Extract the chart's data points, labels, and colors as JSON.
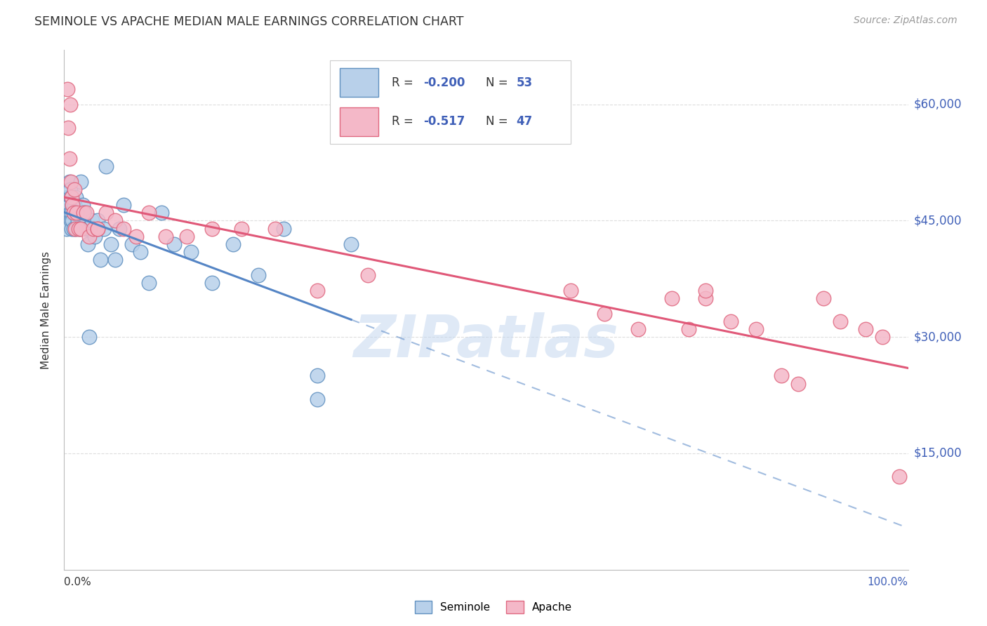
{
  "title": "SEMINOLE VS APACHE MEDIAN MALE EARNINGS CORRELATION CHART",
  "source": "Source: ZipAtlas.com",
  "ylabel": "Median Male Earnings",
  "ytick_values": [
    15000,
    30000,
    45000,
    60000
  ],
  "ytick_labels": [
    "$15,000",
    "$30,000",
    "$45,000",
    "$60,000"
  ],
  "ymin": 0,
  "ymax": 67000,
  "xmin": 0.0,
  "xmax": 1.0,
  "watermark": "ZIPatlas",
  "color_seminole_fill": "#b8d0ea",
  "color_seminole_edge": "#6090c0",
  "color_apache_fill": "#f4b8c8",
  "color_apache_edge": "#e06880",
  "color_seminole_line": "#5585c5",
  "color_apache_line": "#e05878",
  "color_blue_label": "#4060b8",
  "color_dark": "#333333",
  "color_grid": "#dddddd",
  "seminole_x": [
    0.003,
    0.004,
    0.005,
    0.006,
    0.006,
    0.007,
    0.007,
    0.008,
    0.008,
    0.009,
    0.009,
    0.01,
    0.01,
    0.011,
    0.011,
    0.012,
    0.013,
    0.014,
    0.014,
    0.015,
    0.016,
    0.017,
    0.018,
    0.02,
    0.022,
    0.024,
    0.026,
    0.028,
    0.03,
    0.033,
    0.036,
    0.04,
    0.043,
    0.047,
    0.05,
    0.055,
    0.06,
    0.065,
    0.07,
    0.08,
    0.09,
    0.1,
    0.115,
    0.13,
    0.15,
    0.175,
    0.2,
    0.23,
    0.26,
    0.3,
    0.34,
    0.3,
    0.03
  ],
  "seminole_y": [
    44000,
    48000,
    46000,
    50000,
    47000,
    46000,
    49000,
    45000,
    48000,
    46000,
    44000,
    47000,
    45000,
    46000,
    44000,
    47000,
    46000,
    48000,
    44000,
    46000,
    45000,
    46000,
    44000,
    50000,
    47000,
    46000,
    44000,
    42000,
    44000,
    45000,
    43000,
    45000,
    40000,
    44000,
    52000,
    42000,
    40000,
    44000,
    47000,
    42000,
    41000,
    37000,
    46000,
    42000,
    41000,
    37000,
    42000,
    38000,
    44000,
    25000,
    42000,
    22000,
    30000
  ],
  "apache_x": [
    0.004,
    0.005,
    0.006,
    0.007,
    0.008,
    0.009,
    0.01,
    0.011,
    0.012,
    0.013,
    0.015,
    0.017,
    0.02,
    0.023,
    0.026,
    0.03,
    0.035,
    0.04,
    0.05,
    0.06,
    0.07,
    0.085,
    0.1,
    0.12,
    0.145,
    0.175,
    0.21,
    0.25,
    0.3,
    0.36,
    0.6,
    0.64,
    0.68,
    0.72,
    0.74,
    0.76,
    0.79,
    0.82,
    0.85,
    0.87,
    0.9,
    0.92,
    0.95,
    0.97,
    0.99,
    0.76,
    0.04
  ],
  "apache_y": [
    62000,
    57000,
    53000,
    60000,
    50000,
    48000,
    47000,
    46000,
    49000,
    44000,
    46000,
    44000,
    44000,
    46000,
    46000,
    43000,
    44000,
    44000,
    46000,
    45000,
    44000,
    43000,
    46000,
    43000,
    43000,
    44000,
    44000,
    44000,
    36000,
    38000,
    36000,
    33000,
    31000,
    35000,
    31000,
    35000,
    32000,
    31000,
    25000,
    24000,
    35000,
    32000,
    31000,
    30000,
    12000,
    36000,
    44000
  ]
}
